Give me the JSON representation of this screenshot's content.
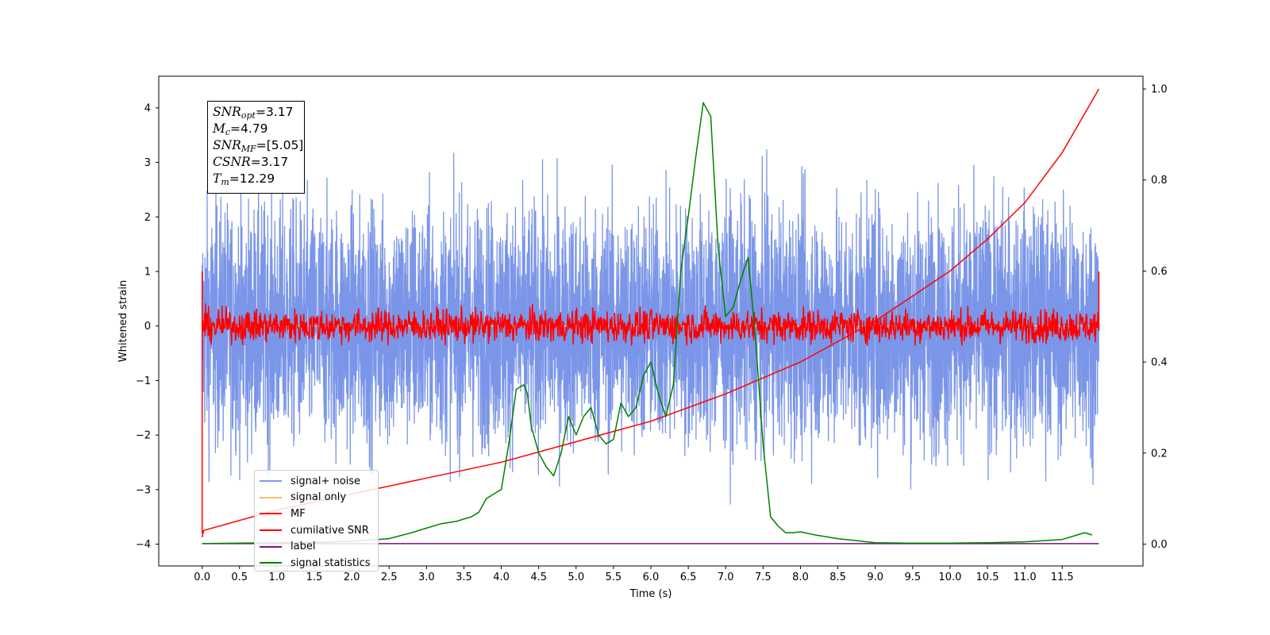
{
  "chart_data": {
    "type": "line",
    "xlabel": "Time (s)",
    "ylabel": "Whitened strain",
    "xlim": [
      -0.58,
      12.58
    ],
    "ylim": [
      -4.4,
      4.58
    ],
    "ylim_right": [
      -0.048,
      1.028
    ],
    "xticks": [
      0.0,
      0.5,
      1.0,
      1.5,
      2.0,
      2.5,
      3.0,
      3.5,
      4.0,
      4.5,
      5.0,
      5.5,
      6.0,
      6.5,
      7.0,
      7.5,
      8.0,
      8.5,
      9.0,
      9.5,
      10.0,
      10.5,
      11.0,
      11.5
    ],
    "xtick_labels": [
      "0.0",
      "0.5",
      "1.0",
      "1.5",
      "2.0",
      "2.5",
      "3.0",
      "3.5",
      "4.0",
      "4.5",
      "5.0",
      "5.5",
      "6.0",
      "6.5",
      "7.0",
      "7.5",
      "8.0",
      "8.5",
      "9.0",
      "9.5",
      "10.0",
      "10.5",
      "11.0",
      "11.5"
    ],
    "yticks": [
      -4,
      -3,
      -2,
      -1,
      0,
      1,
      2,
      3,
      4
    ],
    "ytick_labels": [
      "−4",
      "−3",
      "−2",
      "−1",
      "0",
      "1",
      "2",
      "3",
      "4"
    ],
    "yticks_right": [
      0.0,
      0.2,
      0.4,
      0.6,
      0.8,
      1.0
    ],
    "ytick_labels_right": [
      "0.0",
      "0.2",
      "0.4",
      "0.6",
      "0.8",
      "1.0"
    ],
    "annotation": {
      "snr_opt": "=3.17",
      "mc": "=4.79",
      "snr_mf": "=[5.05]",
      "csnr": "=3.17",
      "tm": "=12.29"
    },
    "series": [
      {
        "name": "signal+ noise",
        "color": "#7b96e8",
        "axis": "left",
        "kind": "noise",
        "amplitude": 1.1,
        "x_range": [
          0.0,
          11.99
        ]
      },
      {
        "name": "signal only",
        "color": "#f5c06b",
        "axis": "left",
        "kind": "flat",
        "value": 0.0,
        "x_range": [
          0.0,
          11.99
        ]
      },
      {
        "name": "MF",
        "color": "#ff0000",
        "axis": "left",
        "kind": "noise",
        "amplitude": 0.15,
        "x_range": [
          0.0,
          11.99
        ],
        "edge_values": [
          1.0,
          -3.8,
          1.0
        ]
      },
      {
        "name": "cumilative SNR",
        "color": "#ff0000",
        "axis": "right",
        "x": [
          0.0,
          0.02,
          1.0,
          2.0,
          3.0,
          4.0,
          5.0,
          6.0,
          7.0,
          8.0,
          9.0,
          10.0,
          10.5,
          11.0,
          11.5,
          11.99
        ],
        "y": [
          0.015,
          0.03,
          0.075,
          0.11,
          0.145,
          0.18,
          0.225,
          0.27,
          0.33,
          0.4,
          0.49,
          0.6,
          0.67,
          0.75,
          0.86,
          1.0
        ]
      },
      {
        "name": "label",
        "color": "#7b0f7b",
        "axis": "right",
        "x": [
          0.0,
          11.99
        ],
        "y": [
          0.001,
          0.001
        ]
      },
      {
        "name": "signal statistics",
        "color": "#008000",
        "axis": "right",
        "x": [
          0.0,
          0.5,
          1.0,
          1.5,
          2.0,
          2.5,
          2.8,
          3.0,
          3.2,
          3.4,
          3.5,
          3.6,
          3.7,
          3.8,
          3.9,
          4.0,
          4.1,
          4.2,
          4.3,
          4.35,
          4.4,
          4.5,
          4.6,
          4.7,
          4.8,
          4.9,
          5.0,
          5.1,
          5.2,
          5.3,
          5.4,
          5.5,
          5.6,
          5.7,
          5.8,
          5.9,
          6.0,
          6.1,
          6.2,
          6.3,
          6.4,
          6.5,
          6.6,
          6.7,
          6.8,
          6.9,
          7.0,
          7.1,
          7.2,
          7.3,
          7.4,
          7.5,
          7.6,
          7.7,
          7.8,
          7.9,
          8.0,
          8.2,
          8.5,
          9.0,
          9.5,
          10.0,
          10.5,
          11.0,
          11.5,
          11.8,
          11.9
        ],
        "y": [
          0.001,
          0.002,
          0.003,
          0.004,
          0.006,
          0.012,
          0.025,
          0.035,
          0.045,
          0.05,
          0.055,
          0.06,
          0.07,
          0.1,
          0.11,
          0.12,
          0.22,
          0.34,
          0.35,
          0.33,
          0.26,
          0.2,
          0.17,
          0.15,
          0.2,
          0.28,
          0.24,
          0.28,
          0.3,
          0.24,
          0.22,
          0.23,
          0.31,
          0.28,
          0.3,
          0.37,
          0.4,
          0.33,
          0.28,
          0.35,
          0.6,
          0.72,
          0.85,
          0.97,
          0.94,
          0.65,
          0.5,
          0.52,
          0.58,
          0.63,
          0.45,
          0.22,
          0.06,
          0.04,
          0.025,
          0.025,
          0.027,
          0.02,
          0.012,
          0.003,
          0.002,
          0.002,
          0.003,
          0.005,
          0.01,
          0.025,
          0.02
        ]
      }
    ],
    "legend_position": "lower-left",
    "grid": false
  }
}
